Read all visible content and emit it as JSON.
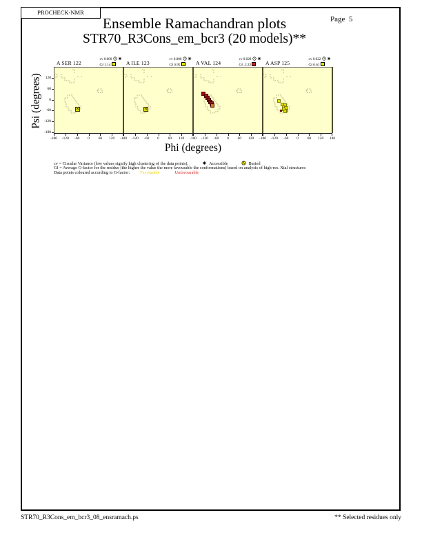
{
  "page": {
    "app_label": "PROCHECK-NMR",
    "page_label": "Page  5",
    "title": "Ensemble Ramachandran plots",
    "subtitle": "STR70_R3Cons_em_bcr3 (20 models)**",
    "footer_left": "STR70_R3Cons_em_bcr3_08_ensramach.ps",
    "footer_right": "** Selected residues only"
  },
  "axes": {
    "xlabel": "Phi (degrees)",
    "ylabel": "Psi (degrees)",
    "x_ticks": [
      -180,
      -120,
      -60,
      0,
      60,
      120,
      180
    ],
    "y_ticks": [
      120,
      60,
      0,
      -60,
      -120,
      -180
    ],
    "xlim": [
      -180,
      180
    ],
    "ylim": [
      -180,
      180
    ]
  },
  "legend": {
    "cv_line": "cv = Circular Variance (low values signify high clustering of the data points).",
    "accessible_label": "Accessible",
    "buried_label": "Buried",
    "gf_line": "Gf = Average G-factor for the residue (the higher the value the more favourable the conformations)  based on analysis of high-res. Xtal structures",
    "points_line": "Data points coloured according to G-factor:",
    "favourable_label": "Favourable",
    "unfavourable_label": "Unfavourable",
    "cv_label_prefix": "cv",
    "gf_label_prefix": "Gf"
  },
  "colors": {
    "plot_background": "#ffffcc",
    "favourable": "#e8e800",
    "unfavourable": "#cc2222",
    "favourable_text": "#e8d800",
    "unfavourable_text": "#dd2222",
    "region_outline": "#9a9a72"
  },
  "chart_data": [
    {
      "type": "scatter",
      "residue": "A SER 122",
      "cv": "0.000",
      "gf": "1.14",
      "gf_status": "favourable",
      "points": [
        {
          "phi": -57,
          "psi": -48,
          "colour": "#d8d800",
          "kind": "stacked"
        }
      ]
    },
    {
      "type": "scatter",
      "residue": "A ILE 123",
      "cv": "0.000",
      "gf": "0.95",
      "gf_status": "favourable",
      "points": [
        {
          "phi": -63,
          "psi": -48,
          "colour": "#d8d800",
          "kind": "stacked"
        }
      ]
    },
    {
      "type": "scatter",
      "residue": "A VAL 124",
      "cv": "0.028",
      "gf": "-2.22",
      "gf_status": "unfavourable",
      "points": [
        {
          "phi": -126,
          "psi": 38,
          "colour": "#a01010",
          "kind": "unfav"
        },
        {
          "phi": -114,
          "psi": 24,
          "colour": "#b01818",
          "kind": "unfav"
        },
        {
          "phi": -105,
          "psi": 12,
          "colour": "#8e0e0e",
          "kind": "unfav"
        },
        {
          "phi": -97,
          "psi": 2,
          "colour": "#a31414",
          "kind": "unfav"
        },
        {
          "phi": -90,
          "psi": -8,
          "colour": "#8b1010",
          "kind": "unfav"
        },
        {
          "phi": -84,
          "psi": -17,
          "colour": "#a01616",
          "kind": "unfav"
        },
        {
          "phi": -82,
          "psi": -28,
          "colour": "#c87820",
          "kind": "unfav"
        }
      ]
    },
    {
      "type": "scatter",
      "residue": "A ASP 125",
      "cv": "0.022",
      "gf": "0.61",
      "gf_status": "favourable",
      "points": [
        {
          "phi": -96,
          "psi": -2,
          "colour": "#e0e000",
          "kind": "fav"
        },
        {
          "phi": -78,
          "psi": -24,
          "colour": "#e0e000",
          "kind": "fav"
        },
        {
          "phi": -66,
          "psi": -28,
          "colour": "#e0e000",
          "kind": "fav"
        },
        {
          "phi": -73,
          "psi": -38,
          "colour": "#e0e000",
          "kind": "fav"
        },
        {
          "phi": -60,
          "psi": -42,
          "colour": "#e0e000",
          "kind": "fav"
        },
        {
          "phi": -70,
          "psi": -50,
          "colour": "#e0e000",
          "kind": "fav"
        },
        {
          "phi": -58,
          "psi": -55,
          "colour": "#e0e000",
          "kind": "fav"
        },
        {
          "phi": -66,
          "psi": -62,
          "colour": "#e0e000",
          "kind": "fav"
        },
        {
          "phi": -85,
          "psi": -57,
          "colour": "#cc2200",
          "kind": "tiny-unfav"
        }
      ]
    }
  ]
}
